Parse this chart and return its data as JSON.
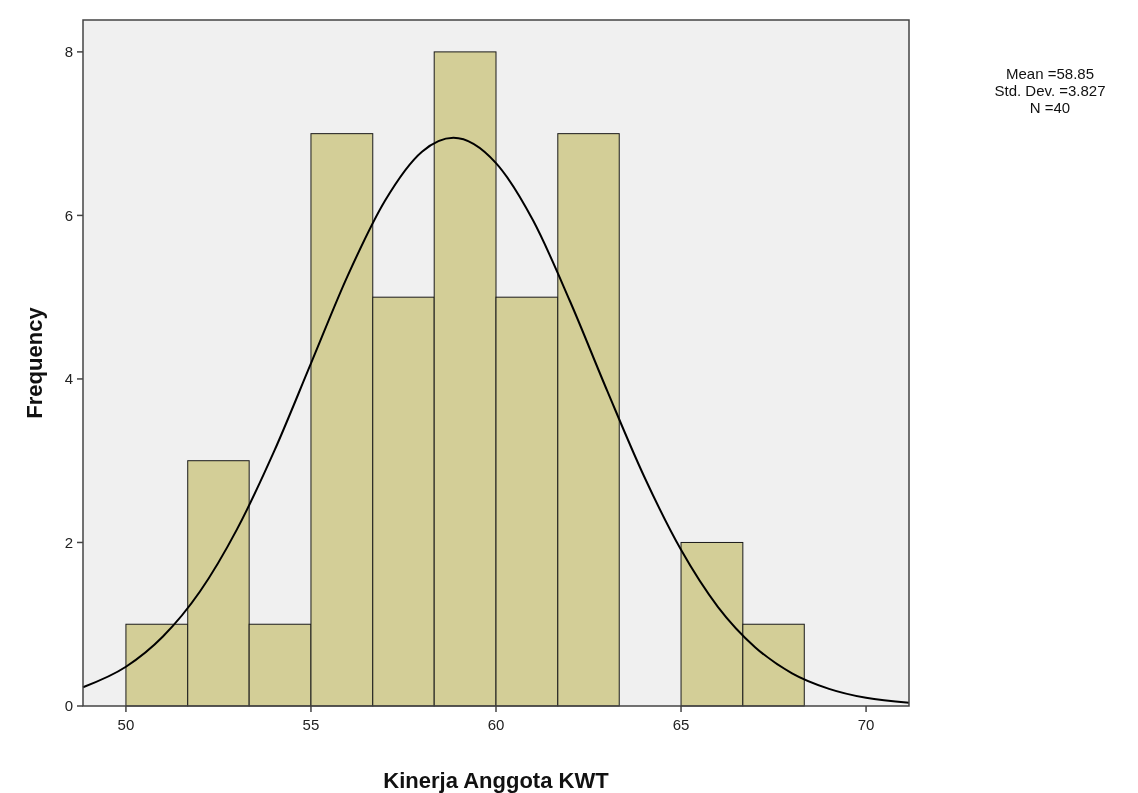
{
  "chart_data": {
    "type": "histogram",
    "xlabel": "Kinerja Anggota KWT",
    "ylabel": "Frequency",
    "bins": [
      50,
      51.67,
      53.33,
      55,
      56.67,
      58.33,
      60,
      61.67,
      63.33,
      65,
      66.67,
      68.33
    ],
    "values": [
      1,
      3,
      1,
      7,
      5,
      8,
      5,
      7,
      0,
      2,
      1
    ],
    "color": "#d3ce97",
    "series": [
      {
        "type": "line",
        "color": "#000000",
        "x": [
          48.84,
          50,
          51,
          52,
          53,
          54,
          55,
          56,
          57,
          58,
          58.85,
          60,
          61,
          62,
          63,
          64,
          65,
          66,
          67,
          68,
          69,
          70,
          71.16
        ],
        "values": [
          0.23,
          0.48,
          0.85,
          1.4,
          2.16,
          3.11,
          4.19,
          5.27,
          6.18,
          6.78,
          6.95,
          6.64,
          5.94,
          4.95,
          3.86,
          2.81,
          1.91,
          1.21,
          0.72,
          0.4,
          0.21,
          0.1,
          0.04
        ]
      }
    ],
    "xlim": [
      48.84,
      71.16
    ],
    "xticks": [
      50,
      55,
      60,
      65,
      70
    ],
    "ylim": [
      0,
      8.39
    ],
    "yticks": [
      0,
      2,
      4,
      6,
      8
    ],
    "annotations": [
      "Mean =58.85",
      "Std. Dev. =3.827",
      "N =40"
    ]
  }
}
